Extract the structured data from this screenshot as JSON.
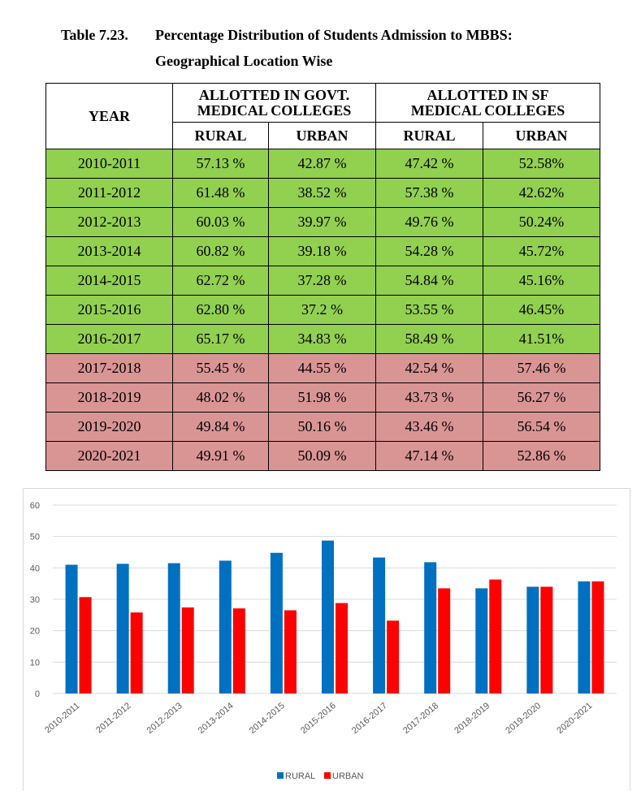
{
  "caption": {
    "number": "Table 7.23.",
    "title_line1": "Percentage Distribution of Students Admission to MBBS:",
    "title_line2": "Geographical Location Wise"
  },
  "table": {
    "year_header": "YEAR",
    "govt_header_line1": "ALLOTTED IN GOVT.",
    "govt_header_line2": "MEDICAL COLLEGES",
    "sf_header_line1": "ALLOTTED IN SF",
    "sf_header_line2": "MEDICAL COLLEGES",
    "rural_label": "RURAL",
    "urban_label": "URBAN",
    "rows": [
      {
        "year": "2010-2011",
        "govt_rural": "57.13 %",
        "govt_urban": "42.87 %",
        "sf_rural": "47.42 %",
        "sf_urban": "52.58%"
      },
      {
        "year": "2011-2012",
        "govt_rural": "61.48 %",
        "govt_urban": "38.52 %",
        "sf_rural": "57.38 %",
        "sf_urban": "42.62%"
      },
      {
        "year": "2012-2013",
        "govt_rural": "60.03 %",
        "govt_urban": "39.97 %",
        "sf_rural": "49.76 %",
        "sf_urban": "50.24%"
      },
      {
        "year": "2013-2014",
        "govt_rural": "60.82 %",
        "govt_urban": "39.18 %",
        "sf_rural": "54.28 %",
        "sf_urban": "45.72%"
      },
      {
        "year": "2014-2015",
        "govt_rural": "62.72 %",
        "govt_urban": "37.28 %",
        "sf_rural": "54.84 %",
        "sf_urban": "45.16%"
      },
      {
        "year": "2015-2016",
        "govt_rural": "62.80 %",
        "govt_urban": "37.2 %",
        "sf_rural": "53.55 %",
        "sf_urban": "46.45%"
      },
      {
        "year": "2016-2017",
        "govt_rural": "65.17 %",
        "govt_urban": "34.83 %",
        "sf_rural": "58.49 %",
        "sf_urban": "41.51%"
      },
      {
        "year": "2017-2018",
        "govt_rural": "55.45 %",
        "govt_urban": "44.55 %",
        "sf_rural": "42.54 %",
        "sf_urban": "57.46 %"
      },
      {
        "year": "2018-2019",
        "govt_rural": "48.02 %",
        "govt_urban": "51.98 %",
        "sf_rural": "43.73 %",
        "sf_urban": "56.27 %"
      },
      {
        "year": "2019-2020",
        "govt_rural": "49.84 %",
        "govt_urban": "50.16 %",
        "sf_rural": "43.46 %",
        "sf_urban": "56.54 %"
      },
      {
        "year": "2020-2021",
        "govt_rural": "49.91 %",
        "govt_urban": "50.09 %",
        "sf_rural": "47.14 %",
        "sf_urban": "52.86 %"
      }
    ],
    "row_colors": {
      "green": "#92d050",
      "pink": "#d99594"
    },
    "green_row_count": 7
  },
  "chart_data": {
    "type": "bar",
    "categories": [
      "2010-2011",
      "2011-2012",
      "2012-2013",
      "2013-2014",
      "2014-2015",
      "2015-2016",
      "2016-2017",
      "2017-2018",
      "2018-2019",
      "2019-2020",
      "2020-2021"
    ],
    "series": [
      {
        "name": "RURAL",
        "color": "#0070c0",
        "values": [
          41,
          41.3,
          41.5,
          42.3,
          44.8,
          48.7,
          43.3,
          41.8,
          33.5,
          34,
          35.7
        ]
      },
      {
        "name": "URBAN",
        "color": "#ff0000",
        "values": [
          30.7,
          25.8,
          27.4,
          27.1,
          26.5,
          28.8,
          23.2,
          33.5,
          36.3,
          34,
          35.7
        ]
      }
    ],
    "ylim": [
      0,
      60
    ],
    "yticks": [
      "0",
      "10",
      "20",
      "30",
      "40",
      "50",
      "60"
    ],
    "legend_position": "bottom",
    "grid": true
  }
}
